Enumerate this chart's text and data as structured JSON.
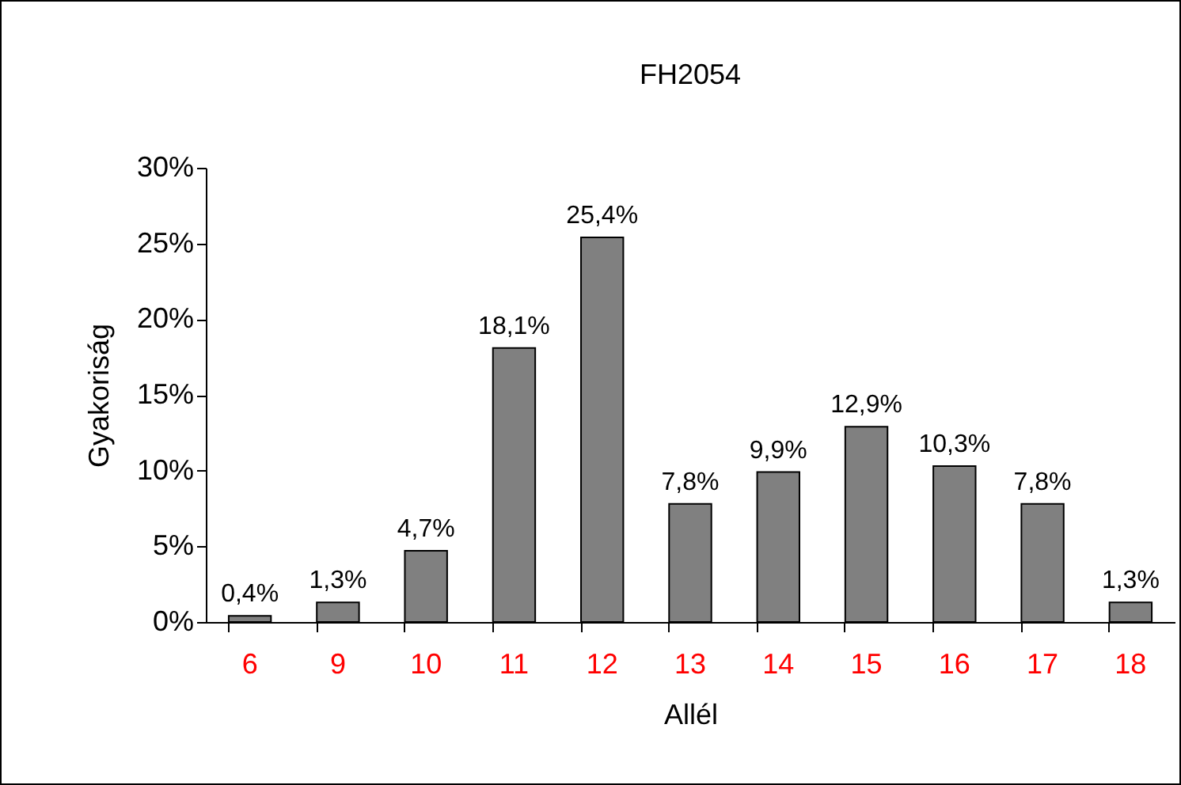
{
  "chart_data": {
    "type": "bar",
    "title": "FH2054",
    "xlabel": "Allél",
    "ylabel": "Gyakoriság",
    "categories": [
      "6",
      "9",
      "10",
      "11",
      "12",
      "13",
      "14",
      "15",
      "16",
      "17",
      "18"
    ],
    "values": [
      0.4,
      1.3,
      4.7,
      18.1,
      25.4,
      7.8,
      9.9,
      12.9,
      10.3,
      7.8,
      1.3
    ],
    "value_labels": [
      "0,4%",
      "1,3%",
      "4,7%",
      "18,1%",
      "25,4%",
      "7,8%",
      "9,9%",
      "12,9%",
      "10,3%",
      "7,8%",
      "1,3%"
    ],
    "color": "#808080",
    "ylim": [
      0,
      30
    ],
    "yticks": [
      {
        "value": 0,
        "label": "0%"
      },
      {
        "value": 5,
        "label": "5%"
      },
      {
        "value": 10,
        "label": "10%"
      },
      {
        "value": 15,
        "label": "15%"
      },
      {
        "value": 20,
        "label": "20%"
      },
      {
        "value": 25,
        "label": "25%"
      },
      {
        "value": 30,
        "label": "30%"
      }
    ],
    "grid": false
  }
}
